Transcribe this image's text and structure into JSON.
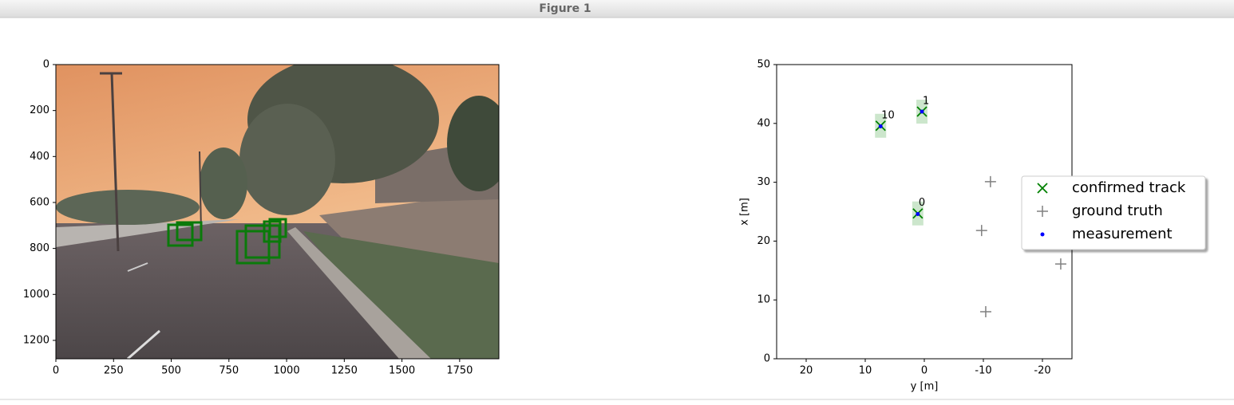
{
  "window": {
    "title": "Figure 1"
  },
  "chart_data": [
    {
      "type": "image",
      "xlim": [
        0,
        1920
      ],
      "xticks": [
        0,
        250,
        500,
        750,
        1000,
        1250,
        1500,
        1750
      ],
      "ylim": [
        1280,
        0
      ],
      "yticks": [
        0,
        200,
        400,
        600,
        800,
        1000,
        1200
      ]
    },
    {
      "type": "scatter",
      "xlabel": "y [m]",
      "ylabel": "x [m]",
      "xlim": [
        25,
        -25
      ],
      "xticks": [
        20,
        10,
        0,
        -10,
        -20
      ],
      "ylim": [
        0,
        50
      ],
      "yticks": [
        0,
        10,
        20,
        30,
        40,
        50
      ],
      "legend": "right",
      "series": [
        {
          "name": "confirmed track",
          "color": "#008000",
          "marker": "x",
          "x": [
            7.4,
            0.4,
            1.1
          ],
          "values": [
            39.6,
            42.0,
            24.7
          ],
          "labels": [
            "10",
            "1",
            "0"
          ]
        },
        {
          "name": "ground truth",
          "color": "#808080",
          "marker": "+",
          "x": [
            -11.2,
            -9.7,
            -23.1,
            -10.4
          ],
          "values": [
            30.1,
            21.8,
            16.1,
            8.0
          ]
        },
        {
          "name": "measurement",
          "color": "#0000ff",
          "marker": "dot",
          "x": [
            7.4,
            0.4,
            1.1
          ],
          "values": [
            39.5,
            42.0,
            24.6
          ]
        }
      ]
    }
  ]
}
